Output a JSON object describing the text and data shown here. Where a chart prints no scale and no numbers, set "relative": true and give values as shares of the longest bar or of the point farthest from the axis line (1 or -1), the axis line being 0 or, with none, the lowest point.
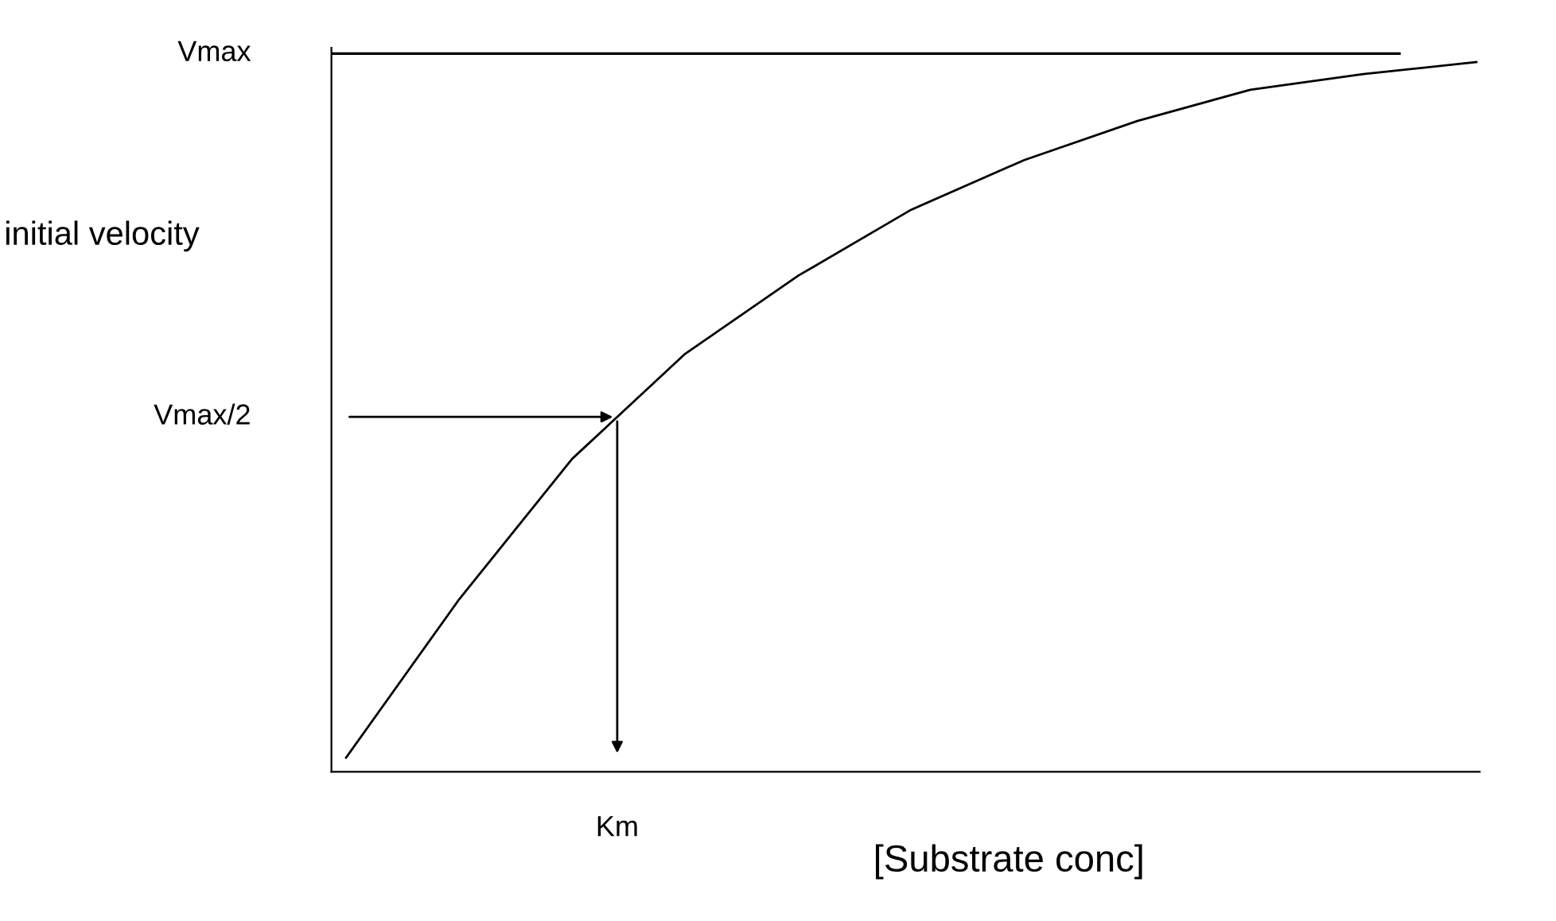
{
  "chart_data": {
    "type": "line",
    "relative": true,
    "xlabel": "[Substrate conc]",
    "ylabel": "initial velocity",
    "categories": [
      null,
      null,
      null,
      null,
      null,
      null,
      null,
      null,
      null,
      null,
      null
    ],
    "series": [
      {
        "color": "#000000",
        "values": [
          0.02,
          0.243,
          0.441,
          0.589,
          0.699,
          0.792,
          0.862,
          0.917,
          0.961,
          0.983,
          1.0
        ]
      }
    ],
    "annotations": [
      "Vmax",
      "Vmax/2",
      "Km"
    ],
    "marker": "none",
    "line_style": "solid"
  }
}
